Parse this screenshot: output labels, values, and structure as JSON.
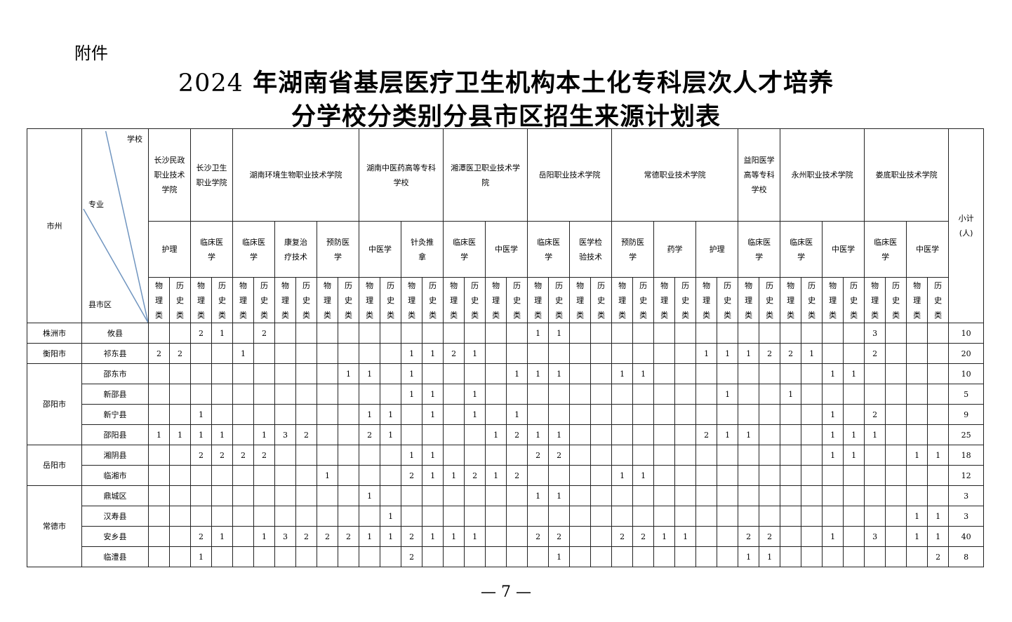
{
  "attachment_label": "附件",
  "title": {
    "year": "2024",
    "line1_rest": " 年湖南省基层医疗卫生机构本土化专科层次人才培养",
    "line2": "分学校分类别分县市区招生来源计划表"
  },
  "header": {
    "city_label": "市州",
    "county_label": "县市区",
    "major_label": "专业",
    "school_label": "学校",
    "subtotal_label": "小计\n(人)",
    "tracks": [
      "物理类",
      "历史类"
    ]
  },
  "schools": [
    {
      "name": "长沙民政职业技术学院",
      "majors": [
        "护理"
      ]
    },
    {
      "name": "长沙卫生职业学院",
      "majors": [
        "临床医学"
      ]
    },
    {
      "name": "湖南环境生物职业技术学院",
      "majors": [
        "临床医学",
        "康复治疗技术",
        "预防医学"
      ]
    },
    {
      "name": "湖南中医药高等专科学校",
      "majors": [
        "中医学",
        "针灸推拿"
      ]
    },
    {
      "name": "湘潭医卫职业技术学院",
      "majors": [
        "临床医学",
        "中医学"
      ]
    },
    {
      "name": "岳阳职业技术学院",
      "majors": [
        "临床医学",
        "医学检验技术"
      ]
    },
    {
      "name": "常德职业技术学院",
      "majors": [
        "预防医学",
        "药学",
        "护理"
      ]
    },
    {
      "name": "益阳医学高等专科学校",
      "majors": [
        "临床医学"
      ]
    },
    {
      "name": "永州职业技术学院",
      "majors": [
        "临床医学",
        "中医学"
      ]
    },
    {
      "name": "娄底职业技术学院",
      "majors": [
        "临床医学",
        "中医学"
      ]
    }
  ],
  "cities": [
    {
      "name": "株洲市",
      "counties": [
        {
          "name": "攸县",
          "values": [
            null,
            null,
            2,
            1,
            null,
            2,
            null,
            null,
            null,
            null,
            null,
            null,
            null,
            null,
            null,
            null,
            null,
            null,
            1,
            1,
            null,
            null,
            null,
            null,
            null,
            null,
            null,
            null,
            null,
            null,
            null,
            null,
            null,
            null,
            3,
            null,
            null,
            null
          ],
          "subtotal": 10
        }
      ]
    },
    {
      "name": "衡阳市",
      "counties": [
        {
          "name": "祁东县",
          "values": [
            2,
            2,
            null,
            null,
            1,
            null,
            null,
            null,
            null,
            null,
            null,
            null,
            1,
            1,
            2,
            1,
            null,
            null,
            null,
            null,
            null,
            null,
            null,
            null,
            null,
            null,
            1,
            1,
            1,
            2,
            2,
            1,
            null,
            null,
            2,
            null,
            null,
            null
          ],
          "subtotal": 20
        }
      ]
    },
    {
      "name": "邵阳市",
      "counties": [
        {
          "name": "邵东市",
          "values": [
            null,
            null,
            null,
            null,
            null,
            null,
            null,
            null,
            null,
            1,
            1,
            null,
            1,
            null,
            null,
            null,
            null,
            1,
            1,
            1,
            null,
            null,
            1,
            1,
            null,
            null,
            null,
            null,
            null,
            null,
            null,
            null,
            1,
            1,
            null,
            null,
            null,
            null
          ],
          "subtotal": 10
        },
        {
          "name": "新邵县",
          "values": [
            null,
            null,
            null,
            null,
            null,
            null,
            null,
            null,
            null,
            null,
            null,
            null,
            1,
            1,
            null,
            1,
            null,
            null,
            null,
            null,
            null,
            null,
            null,
            null,
            null,
            null,
            null,
            1,
            null,
            null,
            1,
            null,
            null,
            null,
            null,
            null,
            null,
            null
          ],
          "subtotal": 5
        },
        {
          "name": "新宁县",
          "values": [
            null,
            null,
            1,
            null,
            null,
            null,
            null,
            null,
            null,
            null,
            1,
            1,
            null,
            1,
            null,
            1,
            null,
            1,
            null,
            null,
            null,
            null,
            null,
            null,
            null,
            null,
            null,
            null,
            null,
            null,
            null,
            null,
            1,
            null,
            2,
            null,
            null,
            null
          ],
          "subtotal": 9
        },
        {
          "name": "邵阳县",
          "values": [
            1,
            1,
            1,
            1,
            null,
            1,
            3,
            2,
            null,
            null,
            2,
            1,
            null,
            null,
            null,
            null,
            1,
            2,
            1,
            1,
            null,
            null,
            null,
            null,
            null,
            null,
            2,
            1,
            1,
            null,
            null,
            null,
            1,
            1,
            1,
            null,
            null,
            null
          ],
          "subtotal": 25
        }
      ]
    },
    {
      "name": "岳阳市",
      "counties": [
        {
          "name": "湘阴县",
          "values": [
            null,
            null,
            2,
            2,
            2,
            2,
            null,
            null,
            null,
            null,
            null,
            null,
            1,
            1,
            null,
            null,
            null,
            null,
            2,
            2,
            null,
            null,
            null,
            null,
            null,
            null,
            null,
            null,
            null,
            null,
            null,
            null,
            1,
            1,
            null,
            null,
            1,
            1
          ],
          "subtotal": 18
        },
        {
          "name": "临湘市",
          "values": [
            null,
            null,
            null,
            null,
            null,
            null,
            null,
            null,
            1,
            null,
            null,
            null,
            2,
            1,
            1,
            2,
            1,
            2,
            null,
            null,
            null,
            null,
            1,
            1,
            null,
            null,
            null,
            null,
            null,
            null,
            null,
            null,
            null,
            null,
            null,
            null,
            null,
            null
          ],
          "subtotal": 12
        }
      ]
    },
    {
      "name": "常德市",
      "counties": [
        {
          "name": "鼎城区",
          "values": [
            null,
            null,
            null,
            null,
            null,
            null,
            null,
            null,
            null,
            null,
            1,
            null,
            null,
            null,
            null,
            null,
            null,
            null,
            1,
            1,
            null,
            null,
            null,
            null,
            null,
            null,
            null,
            null,
            null,
            null,
            null,
            null,
            null,
            null,
            null,
            null,
            null,
            null
          ],
          "subtotal": 3
        },
        {
          "name": "汉寿县",
          "values": [
            null,
            null,
            null,
            null,
            null,
            null,
            null,
            null,
            null,
            null,
            null,
            1,
            null,
            null,
            null,
            null,
            null,
            null,
            null,
            null,
            null,
            null,
            null,
            null,
            null,
            null,
            null,
            null,
            null,
            null,
            null,
            null,
            null,
            null,
            null,
            null,
            1,
            1
          ],
          "subtotal": 3
        },
        {
          "name": "安乡县",
          "values": [
            null,
            null,
            2,
            1,
            null,
            1,
            3,
            2,
            2,
            2,
            1,
            1,
            2,
            1,
            1,
            1,
            null,
            null,
            2,
            2,
            null,
            null,
            2,
            2,
            1,
            1,
            null,
            null,
            2,
            2,
            null,
            null,
            1,
            null,
            3,
            null,
            1,
            1
          ],
          "subtotal": 40
        },
        {
          "name": "临澧县",
          "values": [
            null,
            null,
            1,
            null,
            null,
            null,
            null,
            null,
            null,
            null,
            null,
            null,
            2,
            null,
            null,
            null,
            null,
            null,
            null,
            1,
            null,
            null,
            null,
            null,
            null,
            null,
            null,
            null,
            1,
            1,
            null,
            null,
            null,
            null,
            null,
            null,
            null,
            2
          ],
          "subtotal": 8
        }
      ]
    }
  ],
  "page_number": "— 7 —"
}
